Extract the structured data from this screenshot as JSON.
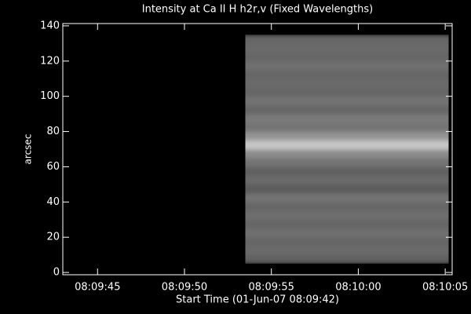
{
  "chart_data": {
    "type": "image",
    "title": "Intensity at Ca II H h2r,v (Fixed Wavelengths)",
    "x_label": "Start Time (01-Jun-07 08:09:42)",
    "y_label": "arcsec",
    "xlim": [
      43,
      65.4
    ],
    "ylim": [
      -1.3,
      141.3
    ],
    "xticks": [
      {
        "value": 45,
        "label": "08:09:45"
      },
      {
        "value": 50,
        "label": "08:09:50"
      },
      {
        "value": 55,
        "label": "08:09:55"
      },
      {
        "value": 60,
        "label": "08:10:00"
      },
      {
        "value": 65,
        "label": "08:10:05"
      }
    ],
    "yticks": [
      0,
      20,
      40,
      60,
      80,
      100,
      120,
      140
    ],
    "x_extent": [
      53.5,
      65.2
    ],
    "y_bins": [
      5,
      10,
      15,
      20,
      25,
      30,
      35,
      40,
      45,
      50,
      55,
      60,
      65,
      70,
      75,
      80,
      85,
      90,
      95,
      100,
      105,
      110,
      115,
      120,
      125,
      130,
      135
    ],
    "intensity": [
      0.38,
      0.42,
      0.4,
      0.44,
      0.4,
      0.43,
      0.4,
      0.45,
      0.36,
      0.42,
      0.38,
      0.45,
      0.55,
      0.78,
      0.58,
      0.45,
      0.48,
      0.4,
      0.45,
      0.4,
      0.42,
      0.4,
      0.44,
      0.4,
      0.42,
      0.4
    ]
  }
}
